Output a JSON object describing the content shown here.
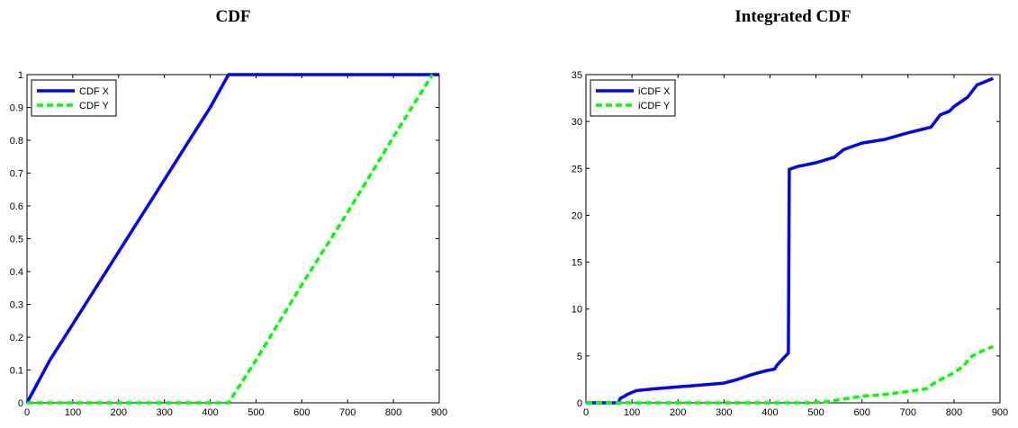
{
  "chart_data": [
    {
      "type": "line",
      "title": "CDF",
      "xlabel": "",
      "ylabel": "",
      "xlim": [
        0,
        900
      ],
      "ylim": [
        0,
        1
      ],
      "xticks": [
        0,
        100,
        200,
        300,
        400,
        500,
        600,
        700,
        800,
        900
      ],
      "yticks": [
        0,
        0.1,
        0.2,
        0.3,
        0.4,
        0.5,
        0.6,
        0.7,
        0.8,
        0.9,
        1
      ],
      "grid": false,
      "legend_position": "top-left",
      "series": [
        {
          "name": "CDF X",
          "color": "#0000ff",
          "style": "solid",
          "x": [
            0,
            50,
            100,
            150,
            200,
            250,
            300,
            350,
            400,
            440,
            900
          ],
          "y": [
            0,
            0.13,
            0.24,
            0.35,
            0.46,
            0.57,
            0.68,
            0.79,
            0.9,
            1,
            1
          ]
        },
        {
          "name": "CDF Y",
          "color": "#00ff00",
          "style": "dashed",
          "x": [
            0,
            440,
            500,
            600,
            700,
            800,
            885
          ],
          "y": [
            0,
            0,
            0.13,
            0.36,
            0.58,
            0.81,
            1
          ]
        }
      ]
    },
    {
      "type": "line",
      "title": "Integrated CDF",
      "xlabel": "",
      "ylabel": "",
      "xlim": [
        0,
        900
      ],
      "ylim": [
        0,
        35
      ],
      "xticks": [
        0,
        100,
        200,
        300,
        400,
        500,
        600,
        700,
        800,
        900
      ],
      "yticks": [
        0,
        5,
        10,
        15,
        20,
        25,
        30,
        35
      ],
      "grid": false,
      "legend_position": "top-left",
      "series": [
        {
          "name": "iCDF X",
          "color": "#0000ff",
          "style": "solid",
          "x": [
            0,
            70,
            75,
            80,
            90,
            110,
            150,
            200,
            250,
            300,
            330,
            360,
            390,
            410,
            415,
            430,
            440,
            442,
            460,
            500,
            540,
            560,
            600,
            650,
            700,
            750,
            770,
            790,
            800,
            830,
            850,
            885
          ],
          "y": [
            0,
            0,
            0.5,
            0.6,
            0.9,
            1.3,
            1.5,
            1.7,
            1.9,
            2.1,
            2.5,
            3.0,
            3.4,
            3.6,
            4.0,
            4.8,
            5.3,
            24.9,
            25.2,
            25.6,
            26.2,
            27.0,
            27.7,
            28.1,
            28.8,
            29.4,
            30.7,
            31.1,
            31.6,
            32.6,
            33.9,
            34.6
          ]
        },
        {
          "name": "iCDF Y",
          "color": "#00ff00",
          "style": "dashed",
          "x": [
            0,
            480,
            520,
            560,
            600,
            650,
            700,
            740,
            760,
            780,
            800,
            820,
            840,
            860,
            885
          ],
          "y": [
            0,
            0,
            0.1,
            0.4,
            0.7,
            0.9,
            1.2,
            1.5,
            2.2,
            2.7,
            3.2,
            3.9,
            5.0,
            5.5,
            6.0
          ]
        }
      ]
    }
  ]
}
